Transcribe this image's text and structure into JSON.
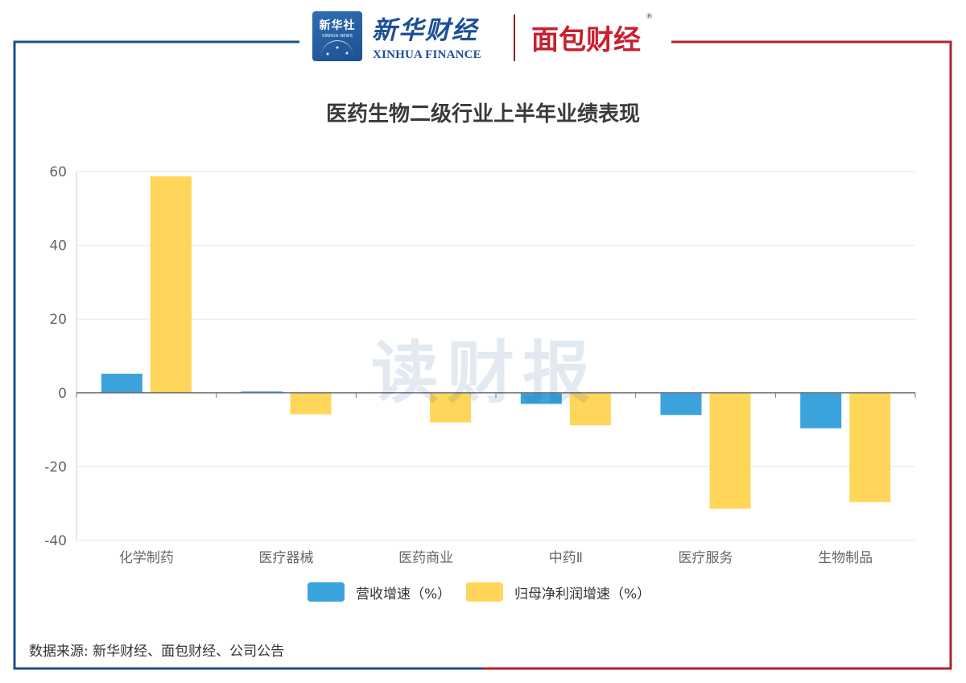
{
  "header": {
    "xinhua_badge_top": "新华社",
    "xinhua_badge_sub": "XINHUA NEWS",
    "xinhua_finance_cn": "新华财经",
    "xinhua_finance_en": "XINHUA FINANCE",
    "mianbao_caijing": "面包财经",
    "registered_mark": "®"
  },
  "watermark": "读财报",
  "source_note": "数据来源: 新华财经、面包财经、公司公告",
  "colors": {
    "frame_left": "#1d4f8f",
    "frame_right": "#b0222d",
    "series_revenue": "#3aa3dc",
    "series_profit": "#ffd65a",
    "grid": "#e3e7f1",
    "axis_text": "#666666"
  },
  "chart_data": {
    "type": "bar",
    "title": "医药生物二级行业上半年业绩表现",
    "categories": [
      "化学制药",
      "医疗器械",
      "医药商业",
      "中药Ⅱ",
      "医疗服务",
      "生物制品"
    ],
    "series": [
      {
        "name": "营收增速（%）",
        "values": [
          5.2,
          0.4,
          0.1,
          -3.0,
          -6.0,
          -9.6
        ]
      },
      {
        "name": "归母净利润增速（%）",
        "values": [
          58.7,
          -5.8,
          -8.0,
          -8.8,
          -31.4,
          -29.6
        ]
      }
    ],
    "ylim": [
      -40,
      60
    ],
    "yticks": [
      -40,
      -20,
      0,
      20,
      40,
      60
    ],
    "grid": true,
    "legend_position": "bottom"
  }
}
